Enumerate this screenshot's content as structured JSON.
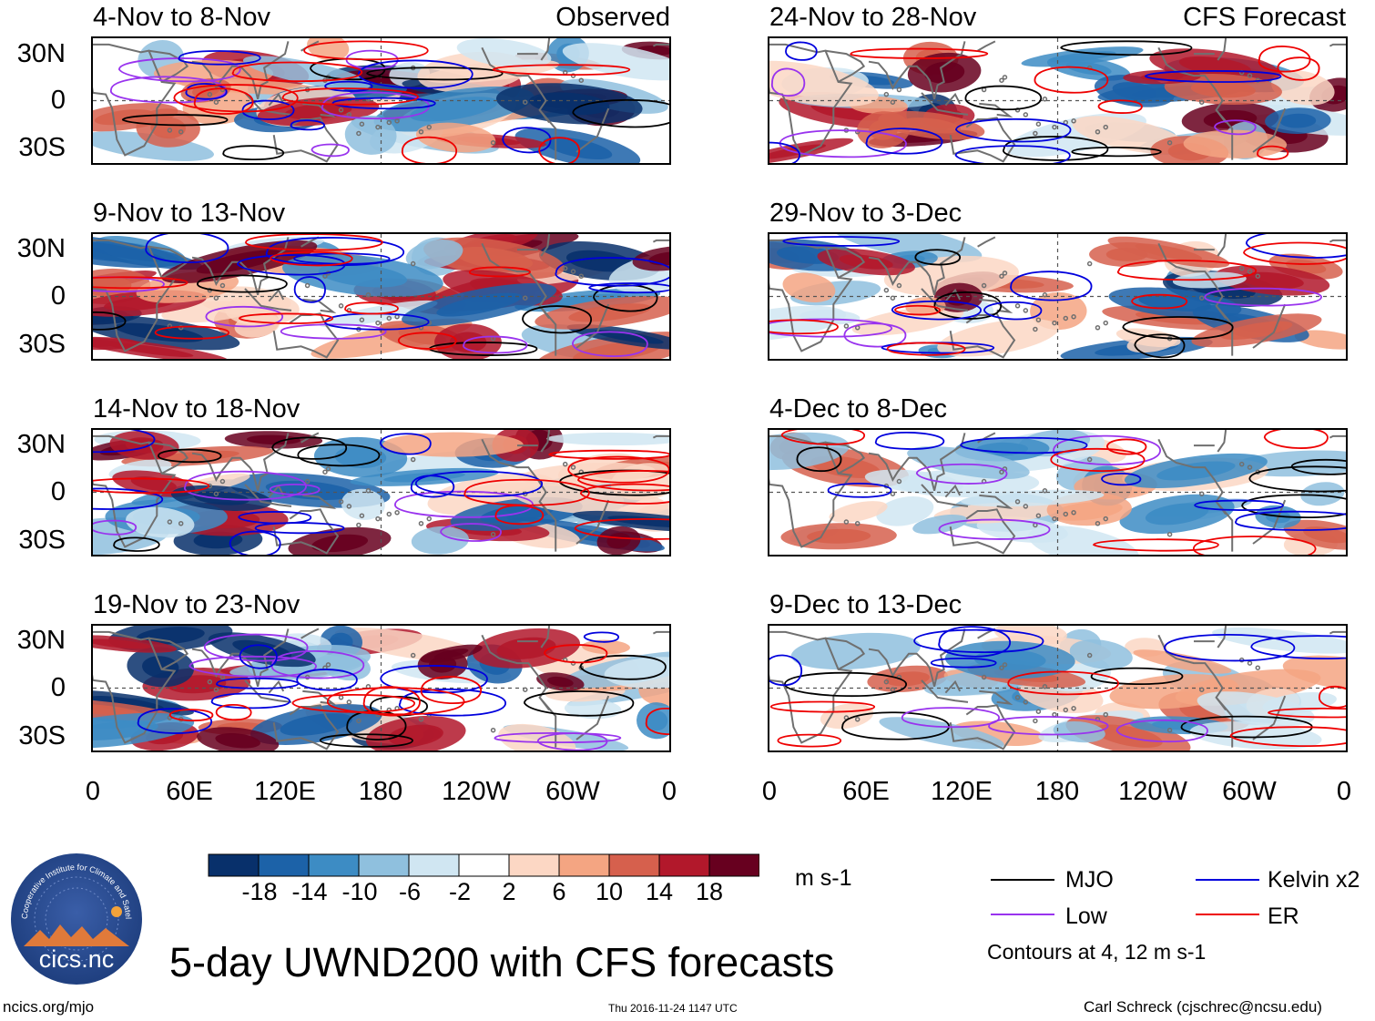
{
  "colors": {
    "mjo": "#000000",
    "low": "#9933ee",
    "kelvin": "#0000dd",
    "er": "#ee0000",
    "coast": "#707070",
    "scale": [
      "#08306b",
      "#1c62a8",
      "#3d8cc4",
      "#8fc0de",
      "#d0e6f2",
      "#ffffff",
      "#fcd7c4",
      "#f4a582",
      "#d6604d",
      "#b2182b",
      "#67001f"
    ]
  },
  "column_headers": {
    "observed": "Observed",
    "forecast": "CFS Forecast"
  },
  "panels": {
    "observed": [
      {
        "period": "4-Nov to 8-Nov"
      },
      {
        "period": "9-Nov to 13-Nov"
      },
      {
        "period": "14-Nov to 18-Nov"
      },
      {
        "period": "19-Nov to 23-Nov"
      }
    ],
    "forecast": [
      {
        "period": "24-Nov to 28-Nov"
      },
      {
        "period": "29-Nov to 3-Dec"
      },
      {
        "period": "4-Dec to 8-Dec"
      },
      {
        "period": "9-Dec to 13-Dec"
      }
    ]
  },
  "axes": {
    "y_ticks": [
      "30N",
      "0",
      "30S"
    ],
    "x_ticks": [
      "0",
      "60E",
      "120E",
      "180",
      "120W",
      "60W",
      "0"
    ]
  },
  "colorbar": {
    "ticks": [
      "-18",
      "-14",
      "-10",
      "-6",
      "-2",
      "2",
      "6",
      "10",
      "14",
      "18"
    ],
    "units": "m s-1"
  },
  "legend": {
    "mjo": "MJO",
    "kelvin": "Kelvin x2",
    "low": "Low",
    "er": "ER",
    "note": "Contours at 4, 12 m s-1"
  },
  "logo": {
    "text": "cics.nc",
    "ring_text": "Cooperative Institute for Climate and Satellites"
  },
  "footer": {
    "title": "5-day UWND200 with CFS forecasts",
    "url": "ncics.org/mjo",
    "timestamp": "Thu 2016-11-24 1147 UTC",
    "author": "Carl Schreck (cjschrec@ncsu.edu)"
  }
}
